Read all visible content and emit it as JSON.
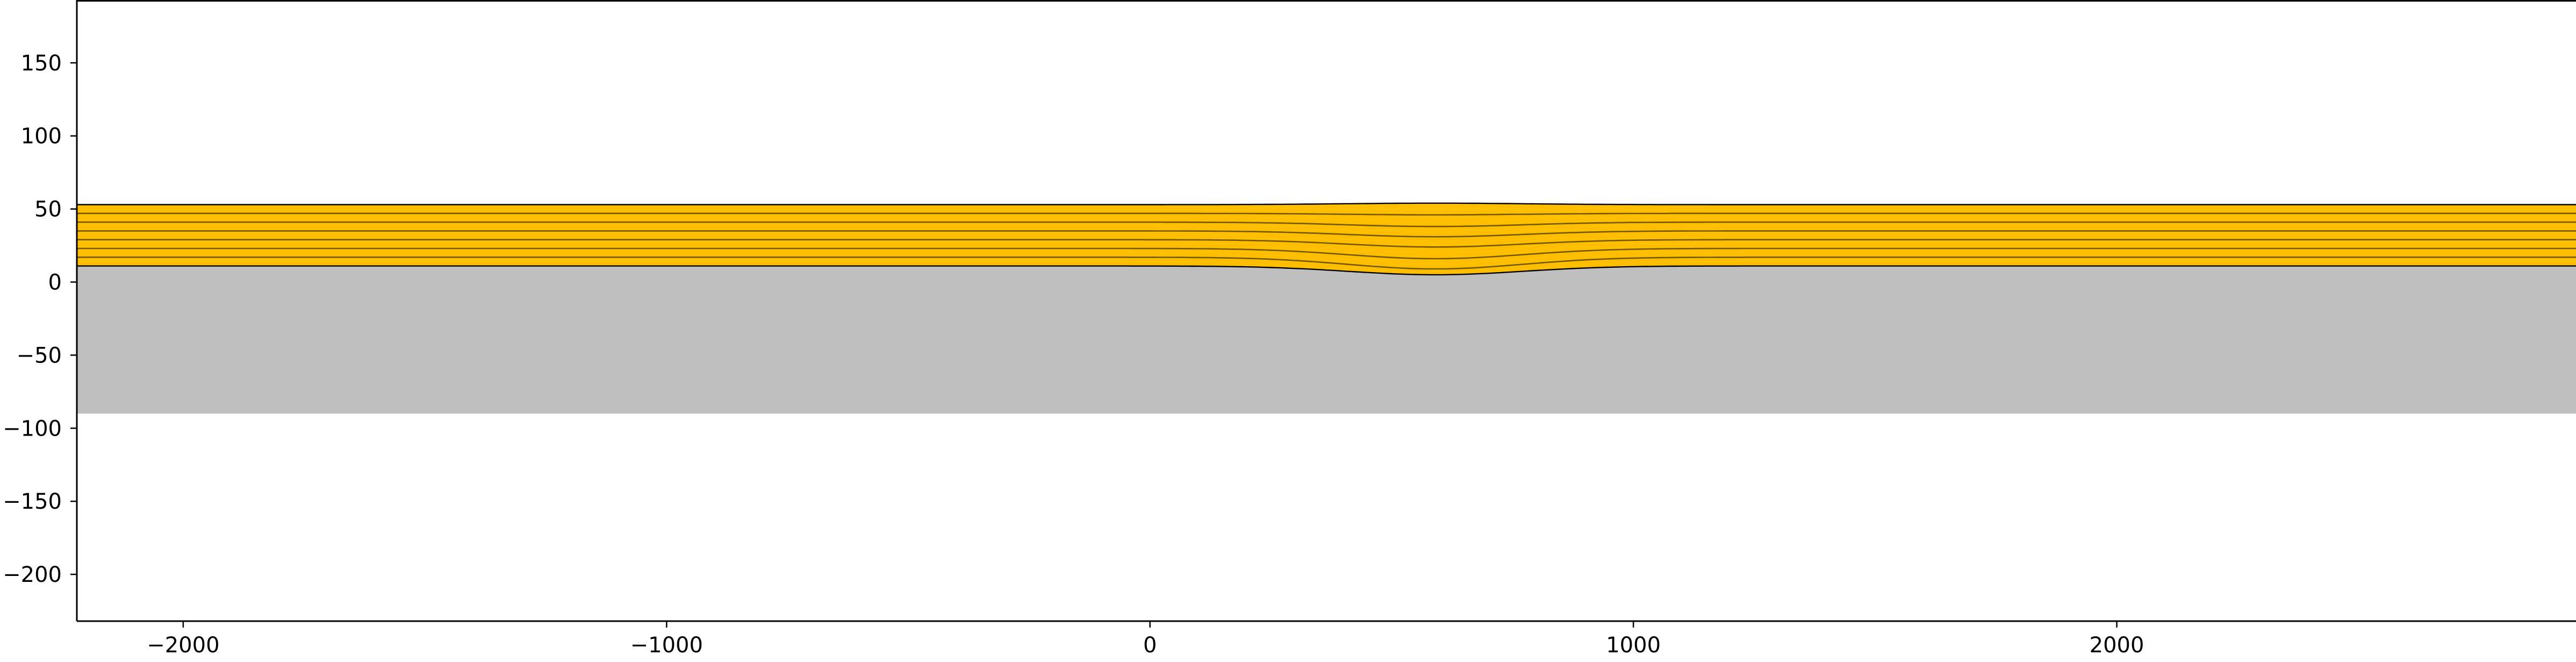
{
  "chart_data": {
    "type": "area",
    "title": "",
    "xlabel": "",
    "ylabel": "",
    "xlim": [
      -2220,
      2950
    ],
    "ylim": [
      -232,
      193
    ],
    "grid": false,
    "x_ticks": [
      -2000,
      -1000,
      0,
      1000,
      2000
    ],
    "x_tick_labels": [
      "−2000",
      "−1000",
      "0",
      "1000",
      "2000"
    ],
    "y_ticks": [
      150,
      100,
      50,
      0,
      -50,
      -100,
      -150,
      -200
    ],
    "y_tick_labels": [
      "150",
      "100",
      "50",
      "0",
      "−50",
      "−100",
      "−150",
      "−200"
    ],
    "basement": {
      "top": 11,
      "bottom": -90,
      "color": "#bfbfbf"
    },
    "sediment": {
      "color": "#ffbf00",
      "edge_color": "#000000",
      "body": {
        "x_center": 590,
        "half_width": 380,
        "max_depth": 5
      },
      "layer_boundaries_far": [
        53,
        47,
        41,
        35,
        29,
        23,
        17,
        11
      ],
      "layer_boundaries_center": [
        54,
        46,
        38,
        31,
        24,
        16,
        9,
        5
      ]
    }
  }
}
